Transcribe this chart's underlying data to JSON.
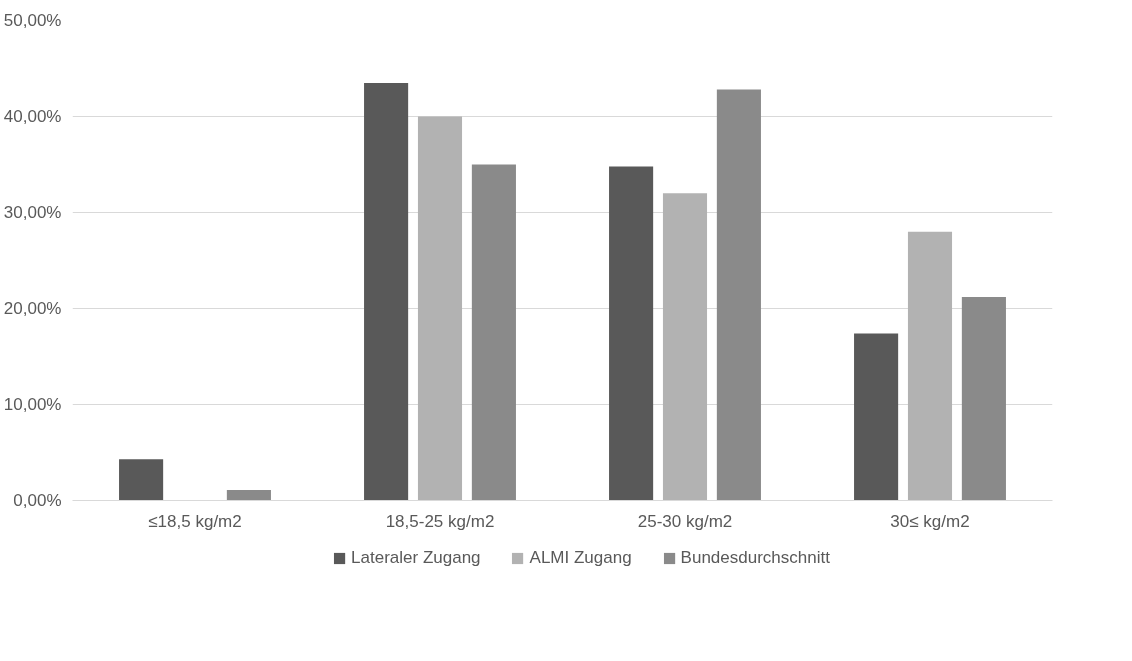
{
  "chart_data": {
    "type": "bar",
    "categories": [
      "≤18,5 kg/m2",
      "18,5-25 kg/m2",
      "25-30 kg/m2",
      "30≤ kg/m2"
    ],
    "series": [
      {
        "name": "Lateraler Zugang",
        "color": "#595959",
        "values": [
          4.3,
          43.5,
          34.8,
          17.4
        ]
      },
      {
        "name": "ALMI Zugang",
        "color": "#b2b2b2",
        "values": [
          0,
          40.0,
          32.0,
          28.0
        ]
      },
      {
        "name": "Bundesdurchschnitt",
        "color": "#8a8a8a",
        "values": [
          1.1,
          35.0,
          42.8,
          21.2
        ]
      }
    ],
    "ylim": [
      0,
      50
    ],
    "yticks": [
      {
        "value": 0,
        "label": "0,00%"
      },
      {
        "value": 10,
        "label": "10,00%"
      },
      {
        "value": 20,
        "label": "20,00%"
      },
      {
        "value": 30,
        "label": "30,00%"
      },
      {
        "value": 40,
        "label": "40,00%"
      },
      {
        "value": 50,
        "label": "50,00%"
      }
    ],
    "grid": "y",
    "legend": "bottom"
  }
}
